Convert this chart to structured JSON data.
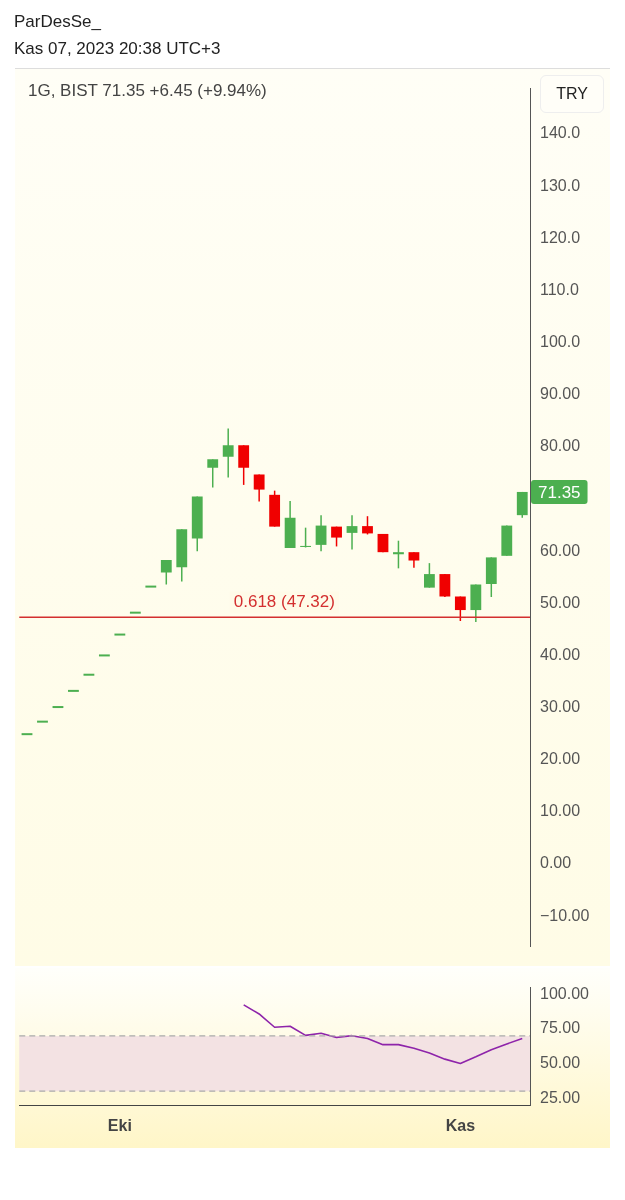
{
  "chart_data": [
    {
      "type": "candlestick",
      "title": "1G, BIST  71.35  +6.45 (+9.94%)",
      "annotations": [
        "ParDesSe_",
        "Kas 07, 2023 20:38 UTC+3",
        "TRY",
        "71.35"
      ],
      "categories": [
        null,
        null,
        null,
        null,
        null,
        null,
        null,
        null,
        null,
        null,
        null,
        null,
        null,
        null,
        null,
        null,
        null,
        null,
        null,
        null,
        null,
        null,
        null,
        null,
        null,
        null,
        null,
        null,
        null,
        null,
        null,
        null,
        null
      ],
      "ohlc": [
        [
          24.9,
          24.9,
          24.9,
          24.9
        ],
        [
          27.3,
          27.3,
          27.3,
          27.3
        ],
        [
          30.1,
          30.1,
          30.1,
          30.1
        ],
        [
          33.2,
          33.2,
          33.2,
          33.2
        ],
        [
          36.3,
          36.3,
          36.3,
          36.3
        ],
        [
          40.0,
          40.0,
          40.0,
          40.0
        ],
        [
          44.0,
          44.0,
          44.0,
          44.0
        ],
        [
          48.2,
          48.2,
          48.2,
          48.2
        ],
        [
          53.2,
          53.2,
          53.2,
          53.2
        ],
        [
          55.9,
          58.3,
          53.6,
          58.3
        ],
        [
          56.9,
          64.2,
          54.2,
          64.2
        ],
        [
          62.4,
          70.5,
          60.0,
          70.5
        ],
        [
          76.0,
          77.6,
          72.2,
          77.6
        ],
        [
          78.1,
          83.5,
          74.1,
          80.3
        ],
        [
          80.3,
          80.3,
          72.7,
          76.0
        ],
        [
          74.7,
          74.7,
          69.5,
          71.8
        ],
        [
          70.8,
          71.6,
          64.7,
          64.7
        ],
        [
          60.6,
          69.6,
          60.6,
          66.4
        ],
        [
          60.8,
          64.5,
          60.7,
          61.0
        ],
        [
          61.2,
          66.9,
          60.0,
          64.9
        ],
        [
          64.7,
          64.7,
          60.9,
          62.6
        ],
        [
          63.5,
          66.9,
          60.3,
          64.8
        ],
        [
          64.8,
          66.7,
          63.2,
          63.4
        ],
        [
          63.3,
          63.3,
          59.8,
          59.8
        ],
        [
          59.4,
          62.0,
          56.7,
          59.8
        ],
        [
          59.8,
          59.8,
          56.8,
          58.2
        ],
        [
          53.0,
          57.7,
          53.0,
          55.6
        ],
        [
          55.6,
          55.6,
          51.2,
          51.3
        ],
        [
          51.3,
          51.3,
          46.6,
          48.7
        ],
        [
          48.7,
          53.6,
          46.4,
          53.6
        ],
        [
          53.7,
          58.8,
          51.2,
          58.8
        ],
        [
          59.1,
          64.9,
          59.1,
          64.9
        ],
        [
          66.9,
          71.35,
          66.4,
          71.35
        ]
      ],
      "colors": [
        "#4caf50",
        "#4caf50",
        "#4caf50",
        "#4caf50",
        "#4caf50",
        "#4caf50",
        "#4caf50",
        "#4caf50",
        "#4caf50",
        "#4caf50",
        "#4caf50",
        "#4caf50",
        "#4caf50",
        "#4caf50",
        "#f00000",
        "#f00000",
        "#f00000",
        "#4caf50",
        "#4caf50",
        "#4caf50",
        "#f00000",
        "#4caf50",
        "#f00000",
        "#f00000",
        "#4caf50",
        "#f00000",
        "#4caf50",
        "#f00000",
        "#f00000",
        "#4caf50",
        "#4caf50",
        "#4caf50",
        "#4caf50"
      ],
      "ylim": [
        -15.8,
        148.7
      ],
      "yticks": [
        {
          "value": -10,
          "label": "−10.00"
        },
        {
          "value": 0,
          "label": "0.00"
        },
        {
          "value": 10,
          "label": "10.00"
        },
        {
          "value": 20,
          "label": "20.00"
        },
        {
          "value": 30,
          "label": "30.00"
        },
        {
          "value": 40,
          "label": "40.00"
        },
        {
          "value": 50,
          "label": "50.00"
        },
        {
          "value": 60,
          "label": "60.00"
        },
        {
          "value": 80,
          "label": "80.00"
        },
        {
          "value": 90,
          "label": "90.00"
        },
        {
          "value": 100,
          "label": "100.0"
        },
        {
          "value": 110,
          "label": "110.0"
        },
        {
          "value": 120,
          "label": "120.0"
        },
        {
          "value": 130,
          "label": "130.0"
        },
        {
          "value": 140,
          "label": "140.0"
        }
      ],
      "ref_lines": [
        {
          "axis": "y",
          "value": 47.32,
          "label": "0.618 (47.32)",
          "color": "#d32f2f"
        }
      ],
      "legend": false,
      "grid": false
    },
    {
      "type": "line",
      "categories": [
        null,
        null,
        null,
        null,
        null,
        null,
        "Eki",
        null,
        null,
        null,
        null,
        null,
        null,
        null,
        null,
        null,
        null,
        null,
        null,
        null,
        null,
        null,
        null,
        null,
        null,
        null,
        null,
        null,
        "Kas",
        null,
        null,
        null,
        null
      ],
      "series": [
        {
          "color": "#8e24aa",
          "values": [
            null,
            null,
            null,
            null,
            null,
            null,
            null,
            null,
            null,
            null,
            null,
            null,
            null,
            null,
            92.5,
            85.9,
            76.3,
            77.0,
            70.4,
            72.0,
            68.9,
            70.2,
            68.2,
            63.7,
            63.7,
            61.1,
            57.6,
            53.2,
            50.1,
            54.9,
            60.0,
            64.2,
            68.2
          ]
        }
      ],
      "ylim": [
        20,
        105
      ],
      "yticks": [
        {
          "value": 25,
          "label": "25.00"
        },
        {
          "value": 50,
          "label": "50.00"
        },
        {
          "value": 75,
          "label": "75.00"
        },
        {
          "value": 100,
          "label": "100.00"
        }
      ],
      "bands": [
        {
          "axis": "y",
          "from": 30,
          "to": 70,
          "color": "#f3e2e3"
        }
      ],
      "ref_lines": [
        {
          "axis": "y",
          "value": 70,
          "color": "#aaaaaa",
          "line_style": "dashed"
        },
        {
          "axis": "y",
          "value": 30,
          "color": "#aaaaaa",
          "line_style": "dashed"
        }
      ],
      "marker": "none",
      "line_style": "solid",
      "legend": false,
      "grid": false
    }
  ]
}
